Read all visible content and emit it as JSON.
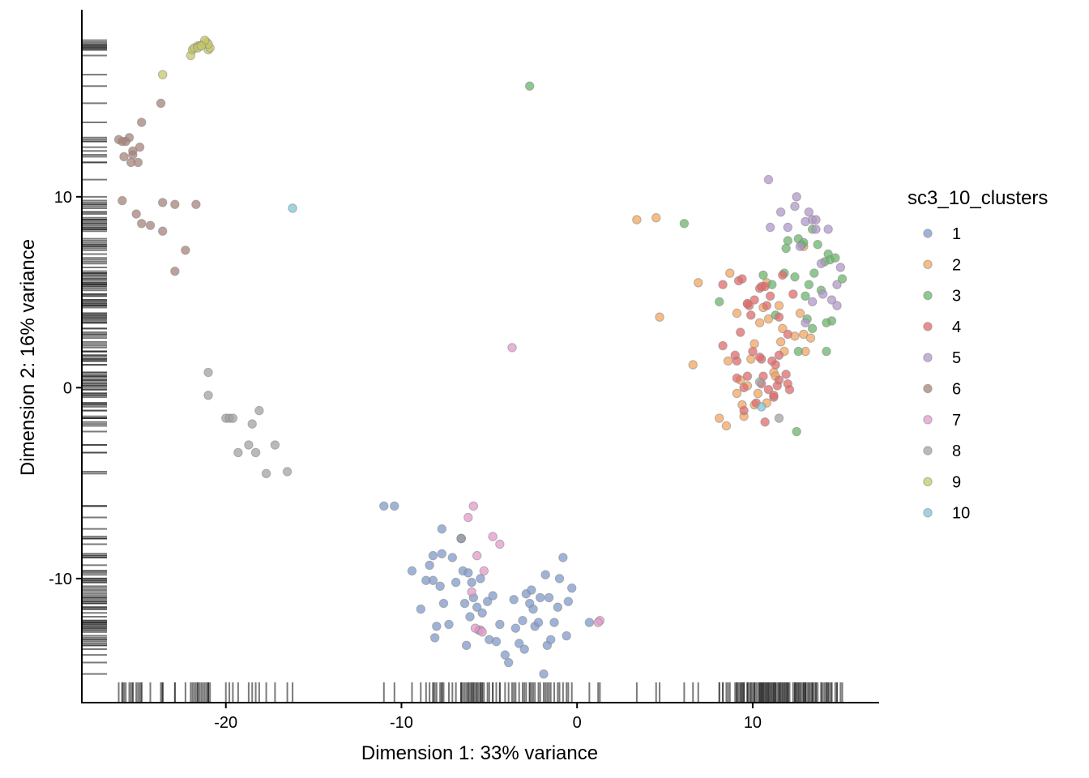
{
  "chart_data": {
    "type": "scatter",
    "title": "",
    "xlabel": "Dimension 1: 33% variance",
    "ylabel": "Dimension 2: 16% variance",
    "xlim": [
      -28.2,
      17.2
    ],
    "ylim": [
      -16.5,
      19.8
    ],
    "x_ticks": [
      -20,
      -10,
      0,
      10
    ],
    "x_tick_labels": [
      "-20",
      "-10",
      "0",
      "10"
    ],
    "y_ticks": [
      -10,
      0,
      10
    ],
    "y_tick_labels": [
      "-10",
      "0",
      "10"
    ],
    "grid": false,
    "rug": true,
    "legend": {
      "title": "sc3_10_clusters",
      "position": "right",
      "entries": [
        {
          "label": "1",
          "color": "#7f9acb"
        },
        {
          "label": "2",
          "color": "#f3a45f"
        },
        {
          "label": "3",
          "color": "#6ab66a"
        },
        {
          "label": "4",
          "color": "#e26a6a"
        },
        {
          "label": "5",
          "color": "#b295c9"
        },
        {
          "label": "6",
          "color": "#a7827a"
        },
        {
          "label": "7",
          "color": "#e39ac8"
        },
        {
          "label": "8",
          "color": "#a2a2a2"
        },
        {
          "label": "9",
          "color": "#c5c865"
        },
        {
          "label": "10",
          "color": "#7ec6d6"
        }
      ]
    },
    "series": [
      {
        "name": "1",
        "color": "#7f9acb",
        "points": [
          [
            -11,
            -6.2
          ],
          [
            -10.4,
            -6.2
          ],
          [
            -9.4,
            -9.6
          ],
          [
            -8.9,
            -11.6
          ],
          [
            -8.6,
            -10.1
          ],
          [
            -8.4,
            -9.3
          ],
          [
            -8.2,
            -8.8
          ],
          [
            -8.2,
            -10.1
          ],
          [
            -8.1,
            -13.1
          ],
          [
            -8.0,
            -12.5
          ],
          [
            -7.8,
            -10.4
          ],
          [
            -7.7,
            -8.7
          ],
          [
            -7.7,
            -7.4
          ],
          [
            -7.6,
            -11.3
          ],
          [
            -7.3,
            -12.4
          ],
          [
            -7.1,
            -8.9
          ],
          [
            -6.9,
            -10.2
          ],
          [
            -6.6,
            -7.9
          ],
          [
            -6.5,
            -9.6
          ],
          [
            -6.4,
            -11.3
          ],
          [
            -6.3,
            -13.5
          ],
          [
            -6.2,
            -9.7
          ],
          [
            -6.1,
            -12.0
          ],
          [
            -6.0,
            -10.2
          ],
          [
            -5.9,
            -11.0
          ],
          [
            -5.7,
            -11.5
          ],
          [
            -5.6,
            -12.7
          ],
          [
            -5.5,
            -10.0
          ],
          [
            -5.4,
            -11.8
          ],
          [
            -5.1,
            -11.2
          ],
          [
            -5.0,
            -13.2
          ],
          [
            -4.8,
            -10.9
          ],
          [
            -4.6,
            -13.3
          ],
          [
            -4.4,
            -12.4
          ],
          [
            -4.1,
            -14.0
          ],
          [
            -3.9,
            -14.4
          ],
          [
            -3.6,
            -11.1
          ],
          [
            -3.5,
            -12.6
          ],
          [
            -3.3,
            -13.4
          ],
          [
            -3.1,
            -12.2
          ],
          [
            -3.0,
            -13.7
          ],
          [
            -2.9,
            -10.8
          ],
          [
            -2.7,
            -11.3
          ],
          [
            -2.6,
            -10.6
          ],
          [
            -2.5,
            -11.6
          ],
          [
            -2.4,
            -12.5
          ],
          [
            -2.2,
            -12.3
          ],
          [
            -2.1,
            -11.0
          ],
          [
            -1.9,
            -15.0
          ],
          [
            -1.7,
            -13.5
          ],
          [
            -1.6,
            -11.0
          ],
          [
            -1.5,
            -13.2
          ],
          [
            -1.3,
            -12.3
          ],
          [
            -1.1,
            -11.5
          ],
          [
            -1.0,
            -10.0
          ],
          [
            -0.8,
            -8.9
          ],
          [
            -0.6,
            -13.0
          ],
          [
            -0.5,
            -11.2
          ],
          [
            -0.3,
            -10.5
          ],
          [
            0.7,
            -12.3
          ],
          [
            -6.6,
            -7.9
          ],
          [
            -1.8,
            -9.8
          ]
        ]
      },
      {
        "name": "2",
        "color": "#f3a45f",
        "points": [
          [
            3.4,
            8.8
          ],
          [
            4.5,
            8.9
          ],
          [
            4.7,
            3.7
          ],
          [
            6.6,
            1.2
          ],
          [
            6.9,
            5.5
          ],
          [
            8.1,
            -1.6
          ],
          [
            8.5,
            -2.0
          ],
          [
            8.6,
            1.4
          ],
          [
            8.7,
            6.0
          ],
          [
            9.1,
            3.9
          ],
          [
            9.3,
            0.4
          ],
          [
            9.4,
            -0.9
          ],
          [
            9.5,
            -1.5
          ],
          [
            9.7,
            4.4
          ],
          [
            9.9,
            1.5
          ],
          [
            10.1,
            -0.9
          ],
          [
            10.1,
            2.3
          ],
          [
            10.3,
            -0.3
          ],
          [
            10.4,
            3.4
          ],
          [
            10.6,
            4.2
          ],
          [
            10.8,
            5.5
          ],
          [
            10.9,
            3.6
          ],
          [
            11.2,
            0.8
          ],
          [
            11.3,
            0.6
          ],
          [
            11.5,
            4.3
          ],
          [
            11.6,
            2.4
          ],
          [
            11.7,
            3.1
          ],
          [
            11.8,
            1.9
          ],
          [
            12.4,
            2.7
          ],
          [
            12.9,
            2.8
          ],
          [
            13.0,
            1.9
          ],
          [
            13.3,
            2.6
          ],
          [
            12.7,
            3.9
          ],
          [
            10.8,
            -0.8
          ],
          [
            9.7,
            0.1
          ],
          [
            12.9,
            7.4
          ],
          [
            9.1,
            -0.3
          ]
        ]
      },
      {
        "name": "3",
        "color": "#6ab66a",
        "points": [
          [
            -2.7,
            15.8
          ],
          [
            6.1,
            8.6
          ],
          [
            8.1,
            4.5
          ],
          [
            10.6,
            5.9
          ],
          [
            11.1,
            5.4
          ],
          [
            11.3,
            3.8
          ],
          [
            11.8,
            6.0
          ],
          [
            12.0,
            7.7
          ],
          [
            12.4,
            5.8
          ],
          [
            12.6,
            7.8
          ],
          [
            12.8,
            7.5
          ],
          [
            13.0,
            4.8
          ],
          [
            13.2,
            5.4
          ],
          [
            13.4,
            8.3
          ],
          [
            13.5,
            6.0
          ],
          [
            13.7,
            7.5
          ],
          [
            13.9,
            5.1
          ],
          [
            14.1,
            6.6
          ],
          [
            14.3,
            7.0
          ],
          [
            14.4,
            6.7
          ],
          [
            14.5,
            3.5
          ],
          [
            14.7,
            6.8
          ],
          [
            15.1,
            5.7
          ],
          [
            12.5,
            -2.3
          ],
          [
            13.1,
            3.6
          ],
          [
            13.4,
            3.1
          ],
          [
            14.2,
            3.4
          ],
          [
            14.2,
            1.9
          ],
          [
            12.6,
            1.9
          ],
          [
            11.9,
            7.3
          ],
          [
            12.9,
            7.6
          ]
        ]
      },
      {
        "name": "4",
        "color": "#e26a6a",
        "points": [
          [
            8.3,
            5.4
          ],
          [
            8.3,
            2.2
          ],
          [
            9.0,
            1.7
          ],
          [
            9.1,
            0.5
          ],
          [
            9.2,
            5.6
          ],
          [
            9.3,
            2.9
          ],
          [
            9.5,
            0.0
          ],
          [
            9.5,
            -1.2
          ],
          [
            9.7,
            0.6
          ],
          [
            9.8,
            4.3
          ],
          [
            9.9,
            3.8
          ],
          [
            10.0,
            1.9
          ],
          [
            10.1,
            4.6
          ],
          [
            10.2,
            -0.8
          ],
          [
            10.4,
            5.2
          ],
          [
            10.5,
            1.5
          ],
          [
            10.6,
            0.6
          ],
          [
            10.7,
            -1.8
          ],
          [
            10.8,
            4.3
          ],
          [
            10.9,
            -0.1
          ],
          [
            11.0,
            4.8
          ],
          [
            11.1,
            1.4
          ],
          [
            11.2,
            -0.5
          ],
          [
            11.3,
            1.2
          ],
          [
            11.5,
            0.4
          ],
          [
            11.5,
            3.7
          ],
          [
            11.7,
            5.9
          ],
          [
            11.9,
            0.7
          ],
          [
            12.0,
            2.8
          ],
          [
            12.3,
            4.9
          ],
          [
            11.5,
            1.7
          ],
          [
            10.7,
            5.3
          ],
          [
            12.0,
            0.2
          ],
          [
            9.4,
            5.7
          ],
          [
            10.5,
            5.3
          ],
          [
            11.2,
            -0.4
          ],
          [
            10.4,
            1.6
          ],
          [
            9.7,
            4.4
          ],
          [
            11.4,
            0.1
          ],
          [
            12.1,
            -0.1
          ],
          [
            10.5,
            0.2
          ],
          [
            9.1,
            1.4
          ]
        ]
      },
      {
        "name": "5",
        "color": "#b295c9",
        "points": [
          [
            10.9,
            10.9
          ],
          [
            11.0,
            8.4
          ],
          [
            11.6,
            9.2
          ],
          [
            12.0,
            8.4
          ],
          [
            12.4,
            9.5
          ],
          [
            12.5,
            10.0
          ],
          [
            12.7,
            7.4
          ],
          [
            13.0,
            8.7
          ],
          [
            13.2,
            9.2
          ],
          [
            13.4,
            8.8
          ],
          [
            13.6,
            8.3
          ],
          [
            13.9,
            6.5
          ],
          [
            14.0,
            4.9
          ],
          [
            14.3,
            8.3
          ],
          [
            14.5,
            4.6
          ],
          [
            14.8,
            5.4
          ],
          [
            14.8,
            4.3
          ],
          [
            15.0,
            6.3
          ],
          [
            13.4,
            4.5
          ],
          [
            13.0,
            3.4
          ],
          [
            13.6,
            8.8
          ]
        ]
      },
      {
        "name": "6",
        "color": "#a7827a",
        "points": [
          [
            -26.1,
            13.0
          ],
          [
            -25.8,
            12.1
          ],
          [
            -25.7,
            12.9
          ],
          [
            -25.5,
            13.1
          ],
          [
            -25.4,
            11.8
          ],
          [
            -25.3,
            12.4
          ],
          [
            -25.0,
            11.8
          ],
          [
            -24.9,
            12.6
          ],
          [
            -24.8,
            13.9
          ],
          [
            -25.3,
            12.2
          ],
          [
            -23.7,
            14.9
          ],
          [
            -25.9,
            9.8
          ],
          [
            -25.1,
            9.1
          ],
          [
            -24.8,
            8.6
          ],
          [
            -24.3,
            8.5
          ],
          [
            -23.6,
            9.7
          ],
          [
            -23.6,
            8.2
          ],
          [
            -22.9,
            9.6
          ],
          [
            -22.3,
            7.2
          ],
          [
            -22.9,
            6.1
          ],
          [
            -21.7,
            9.6
          ],
          [
            -25.9,
            12.9
          ]
        ]
      },
      {
        "name": "7",
        "color": "#e39ac8",
        "points": [
          [
            -3.7,
            2.1
          ],
          [
            -5.9,
            -6.2
          ],
          [
            -6.2,
            -6.8
          ],
          [
            -4.8,
            -7.8
          ],
          [
            -4.4,
            -8.2
          ],
          [
            -5.7,
            -8.8
          ],
          [
            -5.3,
            -9.6
          ],
          [
            -6.0,
            -10.7
          ],
          [
            -5.5,
            -12.7
          ],
          [
            -5.8,
            -12.6
          ],
          [
            -5.4,
            -12.8
          ],
          [
            1.3,
            -12.2
          ],
          [
            1.2,
            -12.3
          ]
        ]
      },
      {
        "name": "8",
        "color": "#a2a2a2",
        "points": [
          [
            -21.0,
            0.8
          ],
          [
            -21.0,
            -0.4
          ],
          [
            -20.0,
            -1.6
          ],
          [
            -19.8,
            -1.6
          ],
          [
            -19.6,
            -1.6
          ],
          [
            -19.3,
            -3.4
          ],
          [
            -18.5,
            -1.9
          ],
          [
            -18.7,
            -3.0
          ],
          [
            -18.3,
            -3.4
          ],
          [
            -18.1,
            -1.2
          ],
          [
            -17.7,
            -4.5
          ],
          [
            -17.2,
            -3.0
          ],
          [
            -16.5,
            -4.4
          ],
          [
            -6.6,
            -7.9
          ],
          [
            11.5,
            -1.6
          ],
          [
            10.4,
            0.3
          ]
        ]
      },
      {
        "name": "9",
        "color": "#c5c865",
        "points": [
          [
            -23.6,
            16.4
          ],
          [
            -22.0,
            17.4
          ],
          [
            -21.9,
            17.7
          ],
          [
            -21.8,
            17.8
          ],
          [
            -21.6,
            17.9
          ],
          [
            -21.5,
            17.9
          ],
          [
            -21.3,
            18.0
          ],
          [
            -21.1,
            18.1
          ],
          [
            -21.0,
            17.7
          ],
          [
            -20.9,
            17.8
          ],
          [
            -21.0,
            18.0
          ],
          [
            -21.2,
            18.2
          ],
          [
            -21.6,
            17.8
          ],
          [
            -21.4,
            17.9
          ]
        ]
      },
      {
        "name": "10",
        "color": "#7ec6d6",
        "points": [
          [
            -16.2,
            9.4
          ],
          [
            10.5,
            -1.0
          ]
        ]
      }
    ]
  }
}
